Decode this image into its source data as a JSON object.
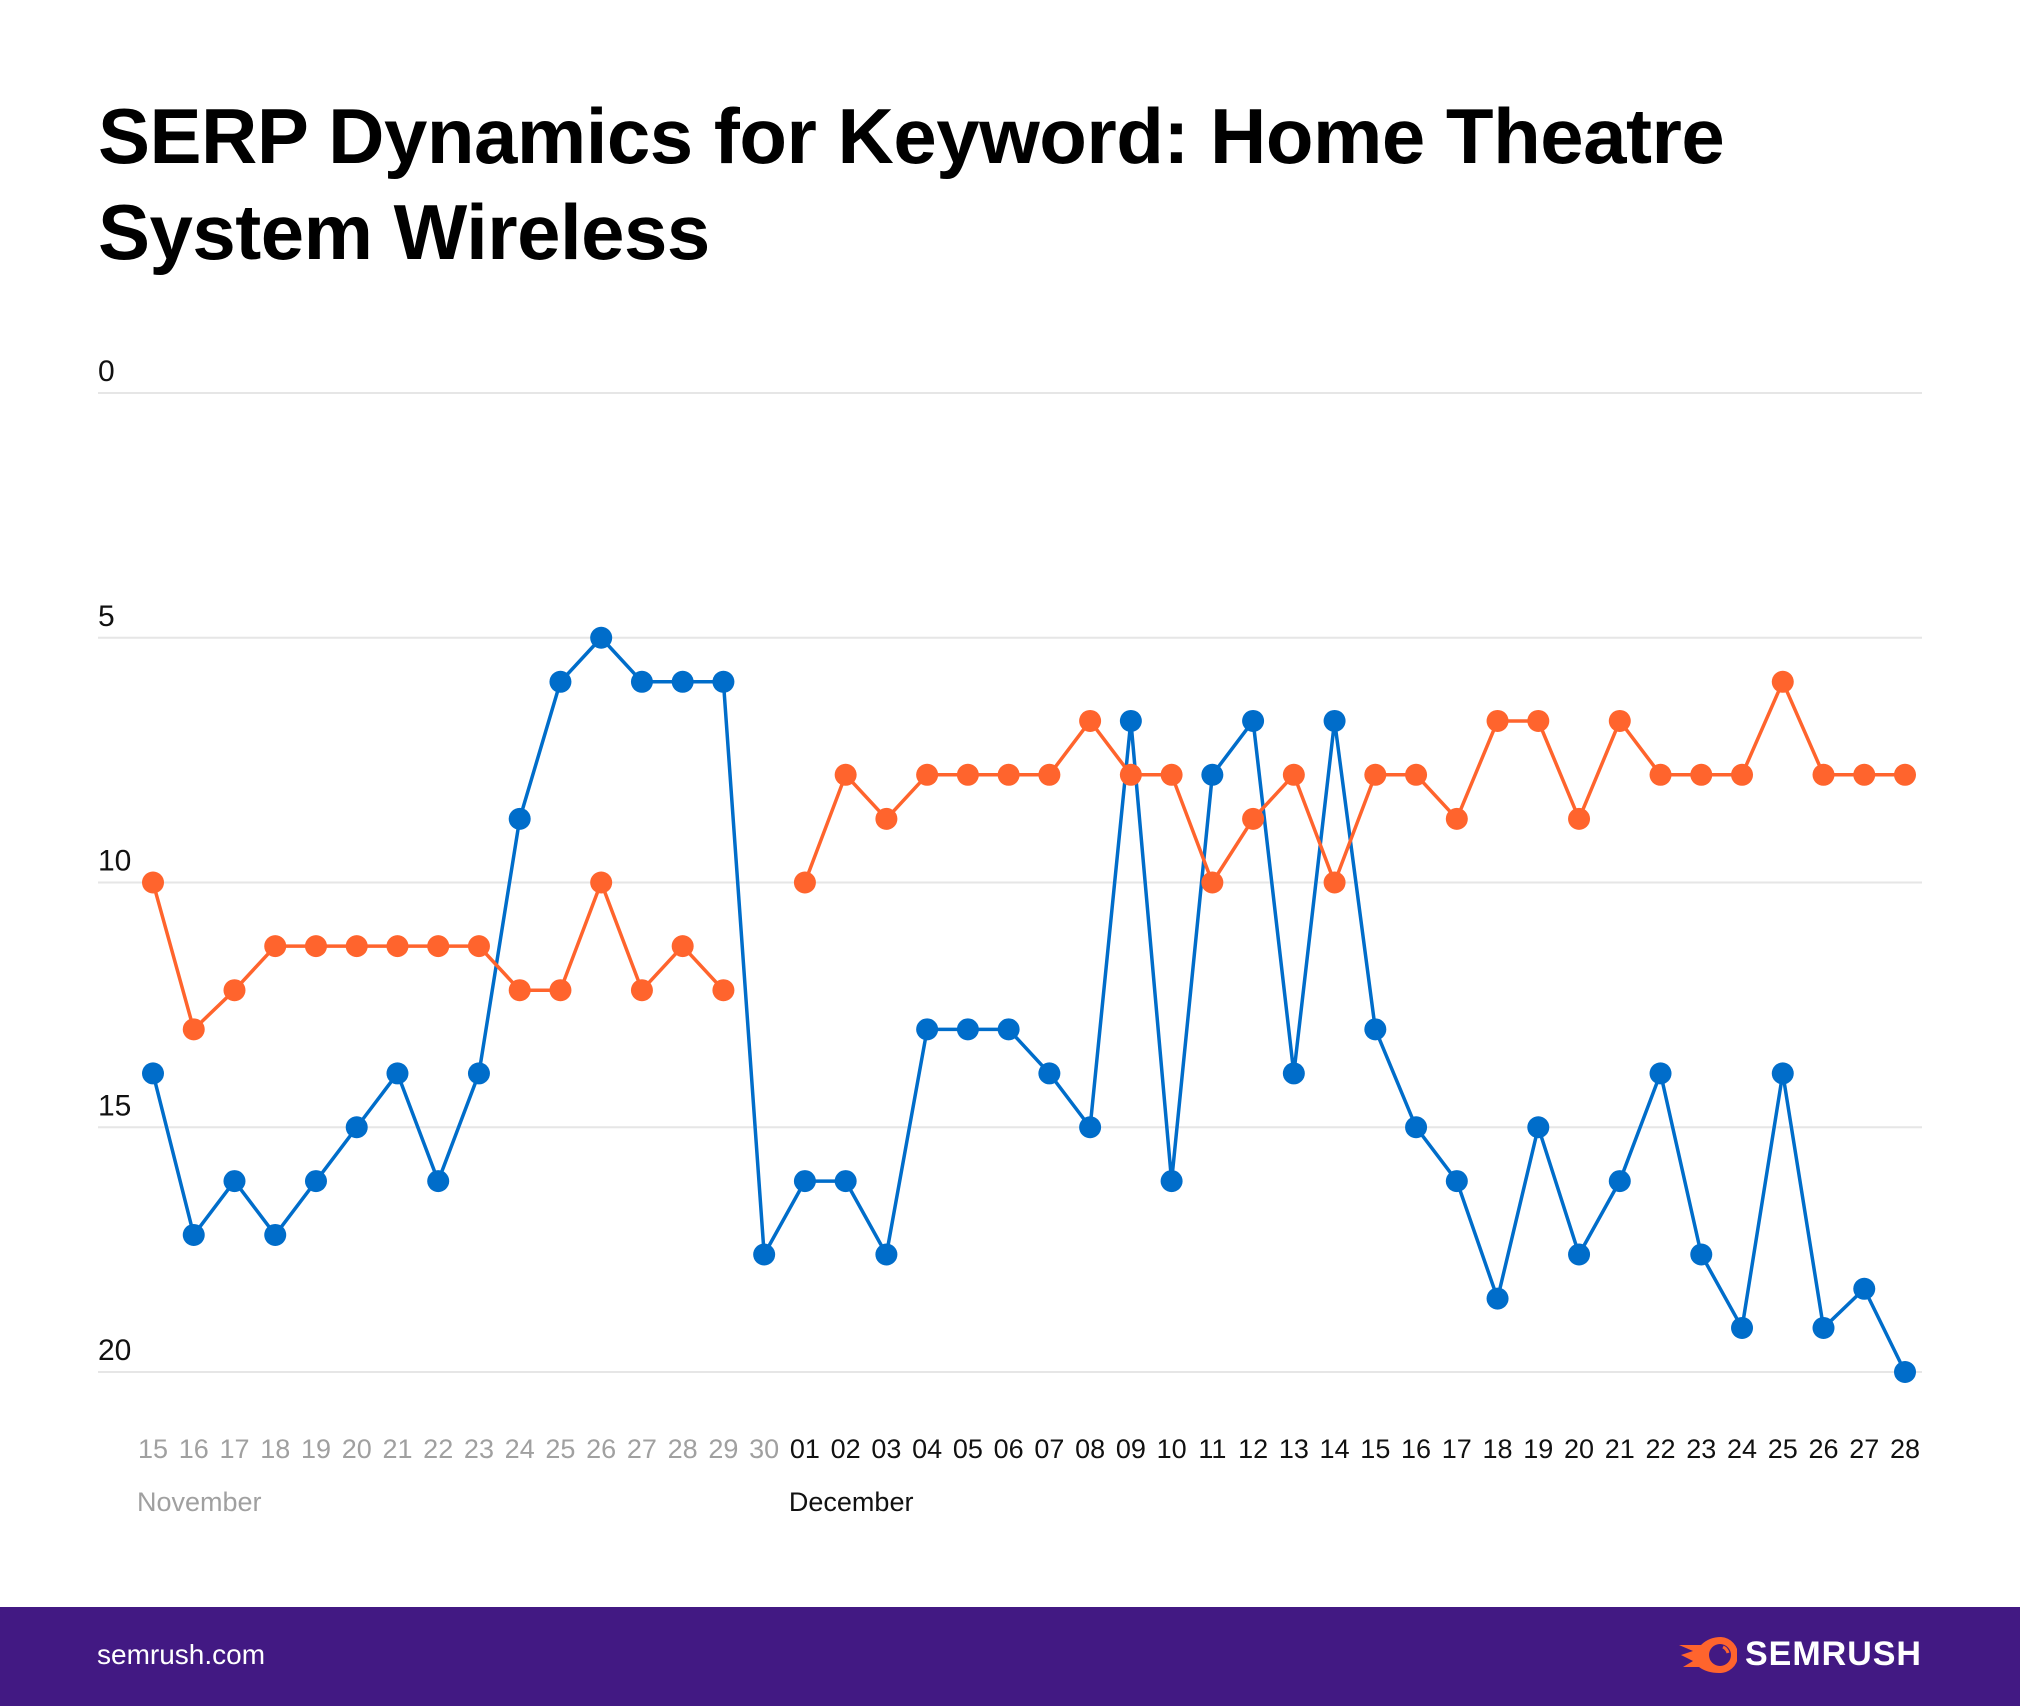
{
  "chart_data": {
    "type": "line",
    "title": "SERP Dynamics for Keyword: Home Theatre System Wireless",
    "xlabel": "",
    "ylabel": "",
    "ylim": [
      0,
      20
    ],
    "y_inverted": true,
    "y_ticks": [
      "0",
      "5",
      "10",
      "15",
      "20"
    ],
    "grid": true,
    "x": [
      "15",
      "16",
      "17",
      "18",
      "19",
      "20",
      "21",
      "22",
      "23",
      "24",
      "25",
      "26",
      "27",
      "28",
      "29",
      "30",
      "01",
      "02",
      "03",
      "04",
      "05",
      "06",
      "07",
      "08",
      "09",
      "10",
      "11",
      "12",
      "13",
      "14",
      "15",
      "16",
      "17",
      "18",
      "19",
      "20",
      "21",
      "22",
      "23",
      "24",
      "25",
      "26",
      "27",
      "28"
    ],
    "months": [
      {
        "label": "November",
        "start_index": 0
      },
      {
        "label": "December",
        "start_index": 16
      }
    ],
    "series": [
      {
        "name": "blue",
        "color": "#006dca",
        "values": [
          13.9,
          17.2,
          16.1,
          17.2,
          16.1,
          15.0,
          13.9,
          16.1,
          13.9,
          8.7,
          5.9,
          5.0,
          5.9,
          5.9,
          5.9,
          17.6,
          16.1,
          16.1,
          17.6,
          13.0,
          13.0,
          13.0,
          13.9,
          15.0,
          6.7,
          16.1,
          7.8,
          6.7,
          13.9,
          6.7,
          13.0,
          15.0,
          16.1,
          18.5,
          15.0,
          17.6,
          16.1,
          13.9,
          17.6,
          19.1,
          13.9,
          19.1,
          18.3,
          20.0
        ]
      },
      {
        "name": "orange",
        "color": "#ff642d",
        "values": [
          10.0,
          13.0,
          12.2,
          11.3,
          11.3,
          11.3,
          11.3,
          11.3,
          11.3,
          12.2,
          12.2,
          10.0,
          12.2,
          11.3,
          12.2,
          null,
          10.0,
          7.8,
          8.7,
          7.8,
          7.8,
          7.8,
          7.8,
          6.7,
          7.8,
          7.8,
          10.0,
          8.7,
          7.8,
          10.0,
          7.8,
          7.8,
          8.7,
          6.7,
          6.7,
          8.7,
          6.7,
          7.8,
          7.8,
          7.8,
          5.9,
          7.8,
          7.8,
          7.8
        ]
      }
    ]
  },
  "footer": {
    "site": "semrush.com",
    "brand": "SEMRUSH",
    "bg_color": "#421983"
  }
}
